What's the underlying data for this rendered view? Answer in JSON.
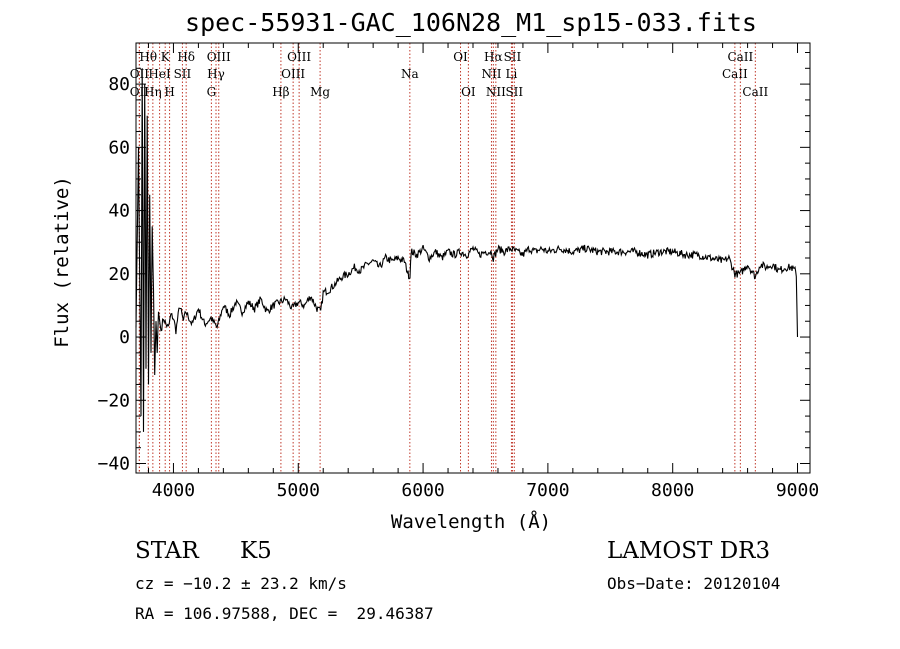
{
  "chart_data": {
    "type": "line",
    "title": "spec-55931-GAC_106N28_M1_sp15-033.fits",
    "xlabel": "Wavelength (Å)",
    "ylabel": "Flux (relative)",
    "xlim": [
      3700,
      9100
    ],
    "ylim": [
      -43,
      93
    ],
    "xticks": [
      4000,
      5000,
      6000,
      7000,
      8000,
      9000
    ],
    "yticks": [
      -40,
      -20,
      0,
      20,
      40,
      60,
      80
    ],
    "series": [
      {
        "name": "flux",
        "x": [
          3700,
          3720,
          3740,
          3750,
          3760,
          3770,
          3780,
          3790,
          3800,
          3810,
          3820,
          3830,
          3840,
          3850,
          3860,
          3870,
          3880,
          3900,
          3920,
          3940,
          3960,
          3980,
          4000,
          4020,
          4050,
          4080,
          4100,
          4150,
          4200,
          4250,
          4300,
          4350,
          4400,
          4450,
          4500,
          4550,
          4600,
          4650,
          4700,
          4750,
          4800,
          4850,
          4900,
          4950,
          5000,
          5050,
          5100,
          5150,
          5180,
          5200,
          5250,
          5300,
          5350,
          5400,
          5450,
          5500,
          5550,
          5600,
          5650,
          5700,
          5750,
          5800,
          5850,
          5880,
          5895,
          5900,
          5910,
          5950,
          6000,
          6050,
          6100,
          6150,
          6200,
          6250,
          6300,
          6350,
          6400,
          6450,
          6500,
          6550,
          6563,
          6600,
          6650,
          6700,
          6750,
          6800,
          6850,
          6900,
          6950,
          7000,
          7100,
          7200,
          7300,
          7400,
          7500,
          7600,
          7700,
          7800,
          7900,
          8000,
          8100,
          8200,
          8300,
          8400,
          8450,
          8498,
          8542,
          8600,
          8662,
          8700,
          8750,
          8800,
          8850,
          8900,
          8950,
          8980,
          8990,
          9000
        ],
        "values": [
          3,
          60,
          -25,
          85,
          -30,
          80,
          -10,
          70,
          -15,
          45,
          -5,
          35,
          15,
          -12,
          5,
          -5,
          8,
          2,
          6,
          4,
          3,
          7,
          6,
          2,
          10,
          5,
          8,
          4,
          9,
          4,
          6,
          3,
          10,
          7,
          11,
          8,
          11,
          9,
          12,
          8,
          10,
          11,
          12,
          9,
          11,
          10,
          13,
          9,
          8,
          14,
          15,
          17,
          19,
          20,
          22,
          21,
          23,
          24,
          22,
          25,
          24,
          25,
          24,
          20,
          19,
          25,
          27,
          26,
          28,
          25,
          27,
          25,
          27,
          26,
          27,
          26,
          28,
          26,
          27,
          27,
          25,
          28,
          27,
          28,
          27,
          26,
          28,
          27,
          28,
          27,
          28,
          27,
          28,
          27,
          27,
          27,
          27,
          26,
          27,
          27,
          26,
          26,
          25,
          24,
          25,
          20,
          20,
          23,
          19,
          23,
          22,
          23,
          21,
          22,
          22,
          21,
          20,
          0
        ]
      }
    ],
    "line_markers": [
      {
        "label": "OII",
        "wave": 3727,
        "row": 2
      },
      {
        "label": "OII",
        "wave": 3727,
        "row": 3
      },
      {
        "label": "Hθ",
        "wave": 3798,
        "row": 1
      },
      {
        "label": "Hη",
        "wave": 3835,
        "row": 3
      },
      {
        "label": "K",
        "wave": 3934,
        "row": 1
      },
      {
        "label": "HeI",
        "wave": 3889,
        "row": 2
      },
      {
        "label": "H",
        "wave": 3969,
        "row": 3
      },
      {
        "label": "SII",
        "wave": 4072,
        "row": 2
      },
      {
        "label": "Hδ",
        "wave": 4102,
        "row": 1
      },
      {
        "label": "G",
        "wave": 4304,
        "row": 3
      },
      {
        "label": "Hγ",
        "wave": 4341,
        "row": 2
      },
      {
        "label": "OIII",
        "wave": 4363,
        "row": 1
      },
      {
        "label": "Hβ",
        "wave": 4861,
        "row": 3
      },
      {
        "label": "OIII",
        "wave": 4959,
        "row": 2
      },
      {
        "label": "OIII",
        "wave": 5007,
        "row": 1
      },
      {
        "label": "Mg",
        "wave": 5175,
        "row": 3
      },
      {
        "label": "Na",
        "wave": 5894,
        "row": 2
      },
      {
        "label": "OI",
        "wave": 6300,
        "row": 1
      },
      {
        "label": "OI",
        "wave": 6363,
        "row": 3
      },
      {
        "label": "NII",
        "wave": 6548,
        "row": 2
      },
      {
        "label": "Hα",
        "wave": 6563,
        "row": 1
      },
      {
        "label": "NII",
        "wave": 6583,
        "row": 3
      },
      {
        "label": "Li",
        "wave": 6708,
        "row": 2
      },
      {
        "label": "SII",
        "wave": 6716,
        "row": 1
      },
      {
        "label": "SII",
        "wave": 6731,
        "row": 3
      },
      {
        "label": "CaII",
        "wave": 8498,
        "row": 2
      },
      {
        "label": "CaII",
        "wave": 8542,
        "row": 1
      },
      {
        "label": "CaII",
        "wave": 8662,
        "row": 3
      }
    ]
  },
  "info": {
    "object_class": "STAR",
    "subclass": "K5",
    "survey": "LAMOST DR3",
    "redshift": "cz = −10.2 ± 23.2 km/s",
    "obs_date": "Obs−Date: 20120104",
    "coords": "RA = 106.97588, DEC =  29.46387"
  }
}
